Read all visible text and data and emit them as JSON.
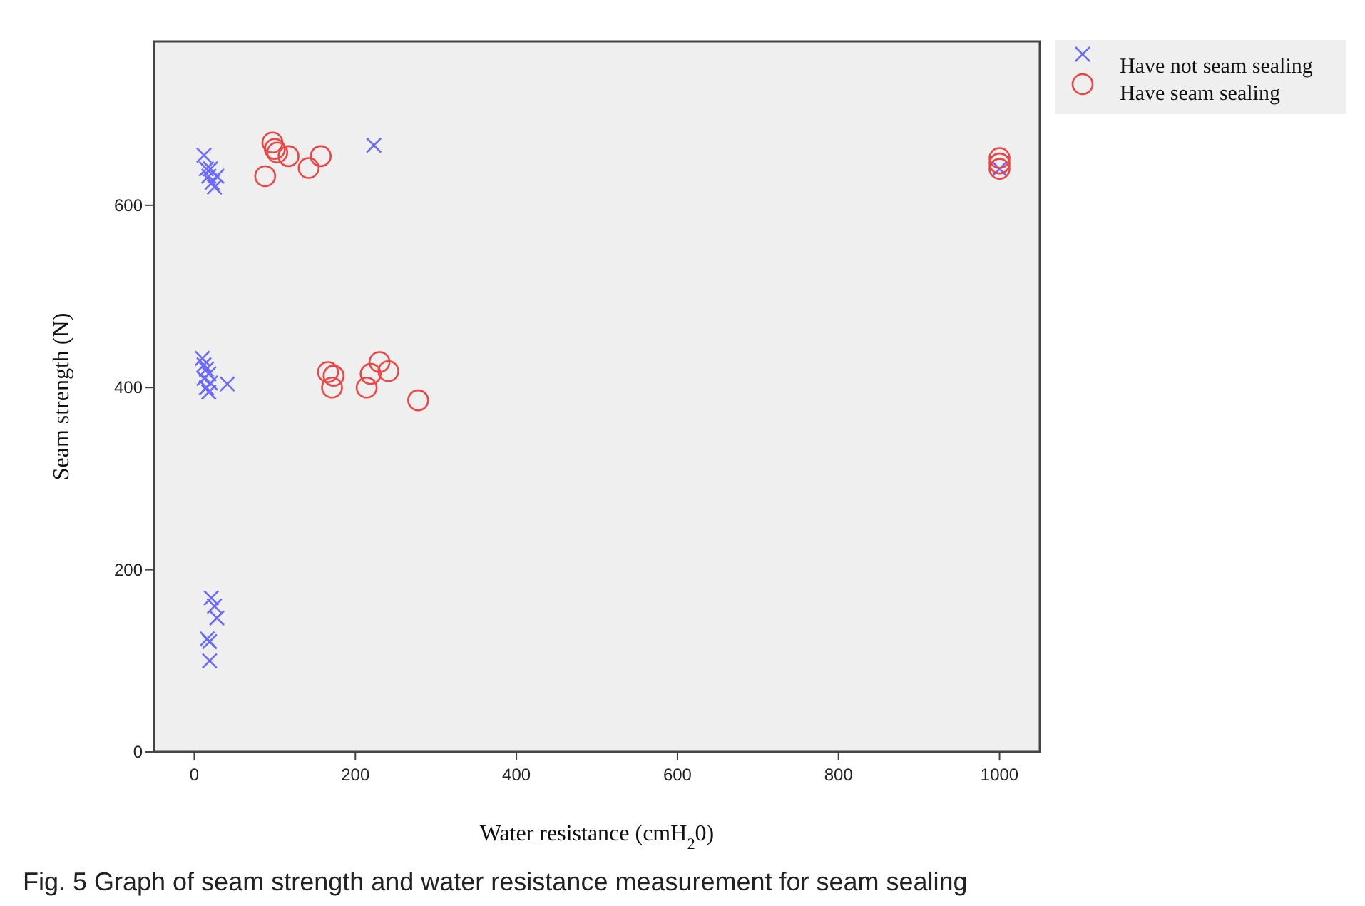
{
  "chart_data": {
    "type": "scatter",
    "xlabel": "Water resistance (cmH$_{2}$0)",
    "ylabel": "Seam strength (N)",
    "xlim": [
      -50,
      1050
    ],
    "xticks": [
      0,
      200,
      400,
      600,
      800,
      1000
    ],
    "ylim": [
      0,
      780
    ],
    "yticks": [
      0,
      200,
      400,
      600
    ],
    "grid": false,
    "legend": "top right",
    "annotations": [
      "Fig. 5  Graph of seam strength and water resistance measurement for seam sealing"
    ],
    "series": [
      {
        "name": "Have not seam sealing",
        "color": "#6a6aff",
        "marker": "cross",
        "x": [
          12,
          15,
          18,
          20,
          22,
          25,
          28,
          223,
          1000,
          10,
          12,
          15,
          18,
          12,
          20,
          15,
          18,
          41,
          21,
          25,
          28,
          16,
          19,
          19
        ],
        "values": [
          655,
          640,
          632,
          640,
          625,
          620,
          632,
          666,
          640,
          432,
          425,
          420,
          415,
          410,
          405,
          400,
          395,
          404,
          169,
          160,
          147,
          124,
          121,
          100
        ]
      },
      {
        "name": "Have seam sealing",
        "color": "#ee4444",
        "marker": "circle",
        "x": [
          97,
          100,
          103,
          117,
          157,
          142,
          88,
          1000,
          1000,
          1000,
          166,
          173,
          171,
          214,
          219,
          230,
          241,
          278
        ],
        "values": [
          669,
          662,
          658,
          654,
          654,
          641,
          632,
          652,
          646,
          640,
          417,
          413,
          400,
          400,
          415,
          428,
          418,
          386
        ]
      }
    ]
  }
}
